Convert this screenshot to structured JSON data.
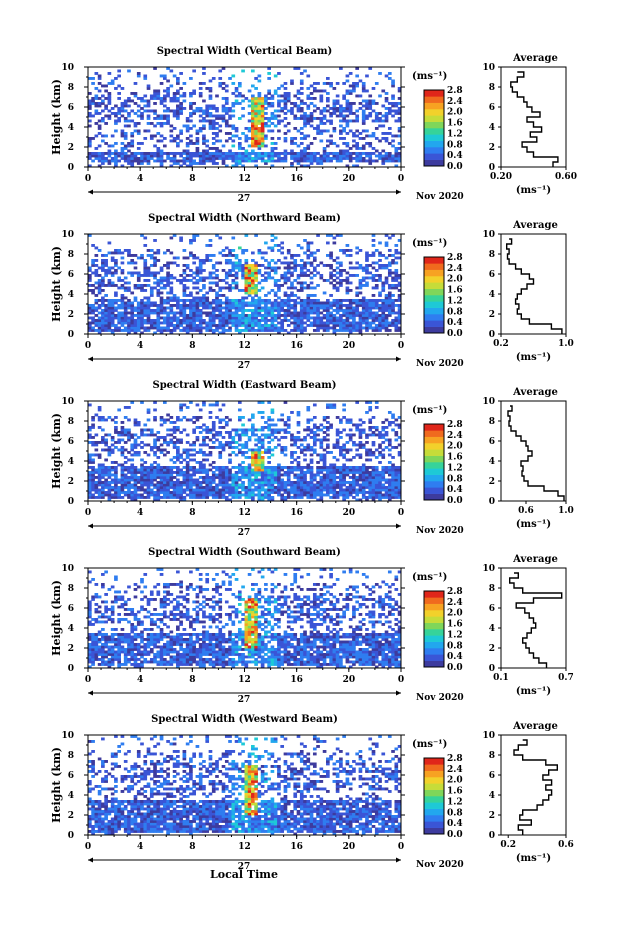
{
  "figure": {
    "date_label": "Nov 2020",
    "day_label": "27",
    "xlabel": "Local Time",
    "ylabel": "Height (km)",
    "colorbar_unit": "(ms⁻¹)",
    "colorbar_ticks": [
      "0.0",
      "0.4",
      "0.8",
      "1.2",
      "1.6",
      "2.0",
      "2.4",
      "2.8"
    ],
    "profile_title": "Average",
    "profile_unit": "(ms⁻¹)"
  },
  "chart_data": [
    {
      "type": "heatmap",
      "title": "Spectral Width (Vertical Beam)",
      "xlabel": "Local Time",
      "ylabel": "Height (km)",
      "x_range": [
        0,
        24
      ],
      "x_ticks": [
        "0",
        "4",
        "8",
        "12",
        "16",
        "20",
        "0"
      ],
      "y_range": [
        0,
        10
      ],
      "y_ticks": [
        "0",
        "2",
        "4",
        "6",
        "8",
        "10"
      ],
      "colorbar": {
        "unit": "(ms⁻¹)",
        "range": [
          0.0,
          2.8
        ]
      },
      "description_of_field": {
        "base_layer_km": [
          0.6,
          1.6
        ],
        "peak_time_h": 13,
        "peak_height_km": [
          2,
          7
        ]
      },
      "profile": {
        "title": "Average",
        "xlabel": "(ms⁻¹)",
        "x_ticks": [
          "0.20",
          "0.60"
        ],
        "x_range": [
          0.2,
          0.6
        ],
        "heights": [
          0,
          0.5,
          1,
          1.5,
          2,
          2.5,
          3,
          3.5,
          4,
          4.5,
          5,
          5.5,
          6,
          6.5,
          7,
          7.5,
          8,
          8.5,
          9,
          9.5
        ],
        "values": [
          0.52,
          0.55,
          0.4,
          0.36,
          0.33,
          0.42,
          0.38,
          0.45,
          0.4,
          0.36,
          0.44,
          0.39,
          0.36,
          0.34,
          0.3,
          0.27,
          0.26,
          0.3,
          0.34,
          0.3
        ]
      }
    },
    {
      "type": "heatmap",
      "title": "Spectral Width (Northward Beam)",
      "xlabel": "Local Time",
      "ylabel": "Height (km)",
      "x_range": [
        0,
        24
      ],
      "x_ticks": [
        "0",
        "4",
        "8",
        "12",
        "16",
        "20",
        "0"
      ],
      "y_range": [
        0,
        10
      ],
      "y_ticks": [
        "0",
        "2",
        "4",
        "6",
        "8",
        "10"
      ],
      "colorbar": {
        "unit": "(ms⁻¹)",
        "range": [
          0.0,
          2.8
        ]
      },
      "description_of_field": {
        "base_layer_km": [
          0.2,
          3.5
        ],
        "peak_time_h": 12.5,
        "peak_height_km": [
          4,
          7
        ]
      },
      "profile": {
        "title": "Average",
        "xlabel": "(ms⁻¹)",
        "x_ticks": [
          "0.2",
          "1.0"
        ],
        "x_range": [
          0.2,
          1.0
        ],
        "heights": [
          0,
          0.5,
          1,
          1.5,
          2,
          2.5,
          3,
          3.5,
          4,
          4.5,
          5,
          5.5,
          6,
          6.5,
          7,
          7.5,
          8,
          8.5,
          9,
          9.5
        ],
        "values": [
          0.95,
          0.82,
          0.55,
          0.45,
          0.4,
          0.42,
          0.38,
          0.4,
          0.45,
          0.52,
          0.6,
          0.55,
          0.45,
          0.38,
          0.3,
          0.28,
          0.3,
          0.27,
          0.33,
          0.3
        ]
      }
    },
    {
      "type": "heatmap",
      "title": "Spectral Width (Eastward Beam)",
      "xlabel": "Local Time",
      "ylabel": "Height (km)",
      "x_range": [
        0,
        24
      ],
      "x_ticks": [
        "0",
        "4",
        "8",
        "12",
        "16",
        "20",
        "0"
      ],
      "y_range": [
        0,
        10
      ],
      "y_ticks": [
        "0",
        "2",
        "4",
        "6",
        "8",
        "10"
      ],
      "colorbar": {
        "unit": "(ms⁻¹)",
        "range": [
          0.0,
          2.8
        ]
      },
      "description_of_field": {
        "base_layer_km": [
          0.2,
          3.5
        ],
        "peak_time_h": 13,
        "peak_height_km": [
          3,
          5
        ]
      },
      "profile": {
        "title": "Average",
        "xlabel": "(ms⁻¹)",
        "x_ticks": [
          "0.6",
          "1.0"
        ],
        "x_range": [
          0.35,
          1.0
        ],
        "heights": [
          0,
          0.5,
          1,
          1.5,
          2,
          2.5,
          3,
          3.5,
          4,
          4.5,
          5,
          5.5,
          6,
          6.5,
          7,
          7.5,
          8,
          8.5,
          9,
          9.5
        ],
        "values": [
          0.98,
          0.92,
          0.78,
          0.62,
          0.58,
          0.56,
          0.57,
          0.55,
          0.62,
          0.66,
          0.62,
          0.6,
          0.55,
          0.5,
          0.45,
          0.43,
          0.44,
          0.42,
          0.46,
          0.44
        ]
      }
    },
    {
      "type": "heatmap",
      "title": "Spectral Width (Southward Beam)",
      "xlabel": "Local Time",
      "ylabel": "Height (km)",
      "x_range": [
        0,
        24
      ],
      "x_ticks": [
        "0",
        "4",
        "8",
        "12",
        "16",
        "20",
        "0"
      ],
      "y_range": [
        0,
        10
      ],
      "y_ticks": [
        "0",
        "2",
        "4",
        "6",
        "8",
        "10"
      ],
      "colorbar": {
        "unit": "(ms⁻¹)",
        "range": [
          0.0,
          2.8
        ]
      },
      "description_of_field": {
        "base_layer_km": [
          0.2,
          3.5
        ],
        "peak_time_h": 12.5,
        "peak_height_km": [
          2,
          7
        ]
      },
      "profile": {
        "title": "Average",
        "xlabel": "(ms⁻¹)",
        "x_ticks": [
          "0.1",
          "0.7"
        ],
        "x_range": [
          0.1,
          0.7
        ],
        "heights": [
          0,
          0.5,
          1,
          1.5,
          2,
          2.5,
          3,
          3.5,
          4,
          4.5,
          5,
          5.5,
          6,
          6.5,
          7,
          7.5,
          8,
          8.5,
          9,
          9.5
        ],
        "values": [
          0.52,
          0.45,
          0.4,
          0.36,
          0.33,
          0.3,
          0.34,
          0.38,
          0.42,
          0.4,
          0.36,
          0.32,
          0.24,
          0.4,
          0.66,
          0.3,
          0.22,
          0.18,
          0.26,
          0.22
        ]
      }
    },
    {
      "type": "heatmap",
      "title": "Spectral Width (Westward Beam)",
      "xlabel": "Local Time",
      "ylabel": "Height (km)",
      "x_range": [
        0,
        24
      ],
      "x_ticks": [
        "0",
        "4",
        "8",
        "12",
        "16",
        "20",
        "0"
      ],
      "y_range": [
        0,
        10
      ],
      "y_ticks": [
        "0",
        "2",
        "4",
        "6",
        "8",
        "10"
      ],
      "colorbar": {
        "unit": "(ms⁻¹)",
        "range": [
          0.0,
          2.8
        ]
      },
      "description_of_field": {
        "base_layer_km": [
          0.2,
          3.5
        ],
        "peak_time_h": 12.5,
        "peak_height_km": [
          2,
          7
        ]
      },
      "profile": {
        "title": "Average",
        "xlabel": "(ms⁻¹)",
        "x_ticks": [
          "0.2",
          "0.6"
        ],
        "x_range": [
          0.15,
          0.6
        ],
        "heights": [
          0,
          0.5,
          1,
          1.5,
          2,
          2.5,
          3,
          3.5,
          4,
          4.5,
          5,
          5.5,
          6,
          6.5,
          7,
          7.5,
          8,
          8.5,
          9,
          9.5
        ],
        "values": [
          0.3,
          0.27,
          0.36,
          0.28,
          0.3,
          0.4,
          0.44,
          0.48,
          0.5,
          0.46,
          0.5,
          0.44,
          0.48,
          0.54,
          0.46,
          0.3,
          0.24,
          0.27,
          0.33,
          0.3
        ]
      }
    }
  ]
}
